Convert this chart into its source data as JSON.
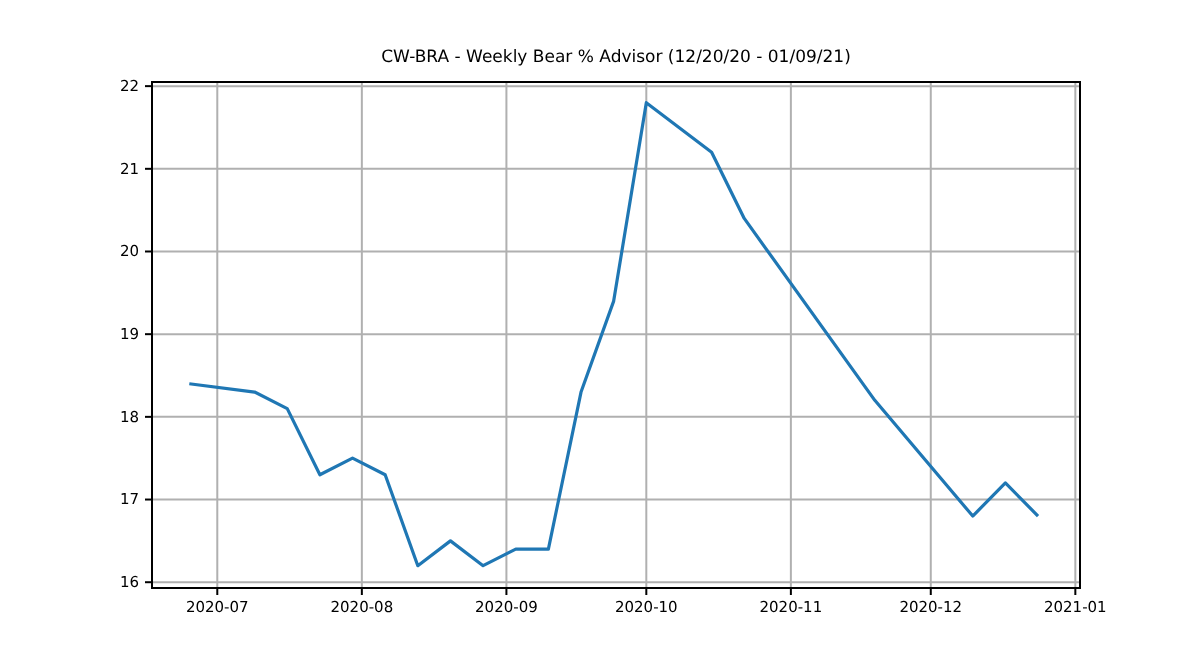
{
  "chart_data": {
    "type": "line",
    "title": "CW-BRA - Weekly Bear % Advisor (12/20/20 - 01/09/21)",
    "x": [
      "2020-06-25",
      "2020-07-09",
      "2020-07-16",
      "2020-07-23",
      "2020-07-30",
      "2020-08-06",
      "2020-08-13",
      "2020-08-20",
      "2020-08-27",
      "2020-09-03",
      "2020-09-10",
      "2020-09-17",
      "2020-09-24",
      "2020-10-01",
      "2020-10-15",
      "2020-10-22",
      "2020-11-19",
      "2020-12-10",
      "2020-12-17",
      "2020-12-24"
    ],
    "series": [
      {
        "color": "#1f77b4",
        "values": [
          18.4,
          18.3,
          18.1,
          17.3,
          17.5,
          17.3,
          16.2,
          16.5,
          16.2,
          16.4,
          16.4,
          18.3,
          19.4,
          21.8,
          21.2,
          20.4,
          18.2,
          16.8,
          17.2,
          16.8
        ]
      }
    ],
    "xlim": [
      "2020-06-17",
      "2021-01-02"
    ],
    "xticks": [
      {
        "value": "2020-07-01",
        "label": "2020-07"
      },
      {
        "value": "2020-08-01",
        "label": "2020-08"
      },
      {
        "value": "2020-09-01",
        "label": "2020-09"
      },
      {
        "value": "2020-10-01",
        "label": "2020-10"
      },
      {
        "value": "2020-11-01",
        "label": "2020-11"
      },
      {
        "value": "2020-12-01",
        "label": "2020-12"
      },
      {
        "value": "2021-01-01",
        "label": "2021-01"
      }
    ],
    "ylim": [
      15.93,
      22.05
    ],
    "yticks": [
      16,
      17,
      18,
      19,
      20,
      21,
      22
    ],
    "grid": true,
    "line_style": "solid",
    "marker": "none"
  }
}
